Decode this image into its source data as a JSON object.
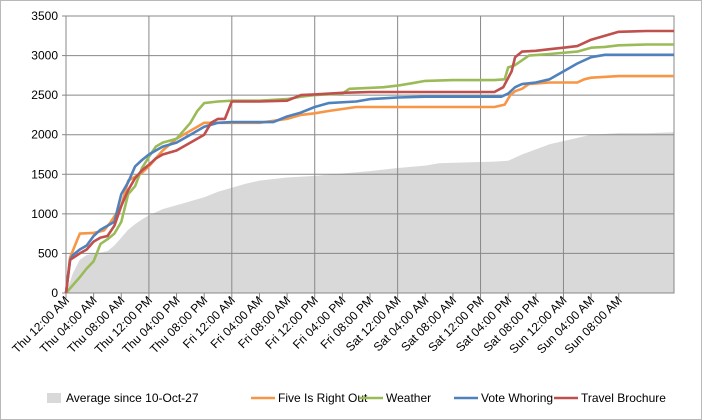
{
  "chart_data": {
    "type": "line",
    "title": "",
    "xlabel": "",
    "ylabel": "",
    "ylim": [
      0,
      3500
    ],
    "y_ticks": [
      0,
      500,
      1000,
      1500,
      2000,
      2500,
      3000,
      3500
    ],
    "x_range_hours": [
      0,
      88
    ],
    "x_ticks": [
      "Thu 12:00 AM",
      "Thu 04:00 AM",
      "Thu 08:00 AM",
      "Thu 12:00 PM",
      "Thu 04:00 PM",
      "Thu 08:00 PM",
      "Fri 12:00 AM",
      "Fri 04:00 AM",
      "Fri 08:00 AM",
      "Fri 12:00 PM",
      "Fri 04:00 PM",
      "Fri 08:00 PM",
      "Sat 12:00 AM",
      "Sat 04:00 AM",
      "Sat 08:00 AM",
      "Sat 12:00 PM",
      "Sat 04:00 PM",
      "Sat 08:00 PM",
      "Sun 12:00 AM",
      "Sun 04:00 AM",
      "Sun 08:00 AM"
    ],
    "grid": "major vertical and horizontal",
    "legend_position": "bottom",
    "series": [
      {
        "name": "Average since 10-Oct-27",
        "style": "area",
        "color": "#d9d9d9",
        "points": [
          [
            0,
            0
          ],
          [
            1,
            250
          ],
          [
            2,
            420
          ],
          [
            3,
            480
          ],
          [
            4,
            500
          ],
          [
            5,
            510
          ],
          [
            6,
            530
          ],
          [
            7,
            600
          ],
          [
            8,
            700
          ],
          [
            9,
            800
          ],
          [
            10,
            870
          ],
          [
            11,
            930
          ],
          [
            12,
            980
          ],
          [
            13,
            1020
          ],
          [
            14,
            1060
          ],
          [
            16,
            1110
          ],
          [
            18,
            1160
          ],
          [
            20,
            1210
          ],
          [
            22,
            1280
          ],
          [
            24,
            1330
          ],
          [
            26,
            1380
          ],
          [
            28,
            1420
          ],
          [
            30,
            1440
          ],
          [
            32,
            1460
          ],
          [
            36,
            1480
          ],
          [
            40,
            1510
          ],
          [
            44,
            1540
          ],
          [
            48,
            1580
          ],
          [
            52,
            1610
          ],
          [
            54,
            1640
          ],
          [
            58,
            1650
          ],
          [
            62,
            1660
          ],
          [
            64,
            1670
          ],
          [
            66,
            1750
          ],
          [
            70,
            1880
          ],
          [
            74,
            1960
          ],
          [
            76,
            2000
          ],
          [
            80,
            2020
          ],
          [
            84,
            2020
          ],
          [
            88,
            2030
          ]
        ]
      },
      {
        "name": "Five Is Right Out",
        "style": "line",
        "color": "#f79646",
        "points": [
          [
            0,
            0
          ],
          [
            0.6,
            450
          ],
          [
            2,
            750
          ],
          [
            4,
            760
          ],
          [
            5.5,
            790
          ],
          [
            6.5,
            900
          ],
          [
            8,
            1100
          ],
          [
            9,
            1420
          ],
          [
            10,
            1470
          ],
          [
            11,
            1520
          ],
          [
            12,
            1600
          ],
          [
            14,
            1800
          ],
          [
            16,
            1950
          ],
          [
            18,
            2050
          ],
          [
            20,
            2150
          ],
          [
            24,
            2150
          ],
          [
            28,
            2150
          ],
          [
            32,
            2200
          ],
          [
            34,
            2250
          ],
          [
            36,
            2270
          ],
          [
            38,
            2300
          ],
          [
            42,
            2350
          ],
          [
            48,
            2350
          ],
          [
            54,
            2350
          ],
          [
            58,
            2350
          ],
          [
            62,
            2350
          ],
          [
            63.5,
            2380
          ],
          [
            64.3,
            2500
          ],
          [
            65,
            2550
          ],
          [
            66,
            2580
          ],
          [
            67,
            2640
          ],
          [
            70,
            2660
          ],
          [
            74,
            2660
          ],
          [
            75,
            2700
          ],
          [
            76,
            2720
          ],
          [
            80,
            2740
          ],
          [
            84,
            2740
          ],
          [
            88,
            2740
          ]
        ]
      },
      {
        "name": "Weather",
        "style": "line",
        "color": "#9bbb59",
        "points": [
          [
            0,
            0
          ],
          [
            1,
            100
          ],
          [
            2,
            200
          ],
          [
            3,
            310
          ],
          [
            4,
            400
          ],
          [
            5,
            620
          ],
          [
            6,
            680
          ],
          [
            7,
            750
          ],
          [
            8,
            900
          ],
          [
            9,
            1250
          ],
          [
            10,
            1350
          ],
          [
            11,
            1580
          ],
          [
            12,
            1720
          ],
          [
            13,
            1850
          ],
          [
            14,
            1900
          ],
          [
            16,
            1950
          ],
          [
            17,
            2050
          ],
          [
            18,
            2150
          ],
          [
            19,
            2300
          ],
          [
            20,
            2400
          ],
          [
            22,
            2420
          ],
          [
            24,
            2430
          ],
          [
            28,
            2430
          ],
          [
            32,
            2450
          ],
          [
            34,
            2480
          ],
          [
            36,
            2500
          ],
          [
            40,
            2520
          ],
          [
            41,
            2580
          ],
          [
            46,
            2600
          ],
          [
            48,
            2620
          ],
          [
            50,
            2650
          ],
          [
            52,
            2680
          ],
          [
            56,
            2690
          ],
          [
            60,
            2690
          ],
          [
            62,
            2690
          ],
          [
            63.5,
            2700
          ],
          [
            64,
            2850
          ],
          [
            65,
            2880
          ],
          [
            66,
            2940
          ],
          [
            67,
            3000
          ],
          [
            70,
            3020
          ],
          [
            74,
            3050
          ],
          [
            76,
            3100
          ],
          [
            78,
            3110
          ],
          [
            80,
            3130
          ],
          [
            84,
            3140
          ],
          [
            88,
            3140
          ]
        ]
      },
      {
        "name": "Vote Whoring",
        "style": "line",
        "color": "#4f81bd",
        "points": [
          [
            0,
            0
          ],
          [
            0.6,
            420
          ],
          [
            1,
            480
          ],
          [
            2,
            550
          ],
          [
            3,
            600
          ],
          [
            4,
            720
          ],
          [
            5,
            800
          ],
          [
            6,
            850
          ],
          [
            7,
            900
          ],
          [
            8,
            1250
          ],
          [
            9,
            1400
          ],
          [
            10,
            1600
          ],
          [
            11,
            1680
          ],
          [
            12,
            1750
          ],
          [
            13,
            1800
          ],
          [
            14,
            1850
          ],
          [
            16,
            1900
          ],
          [
            18,
            2000
          ],
          [
            20,
            2100
          ],
          [
            22,
            2150
          ],
          [
            24,
            2160
          ],
          [
            28,
            2160
          ],
          [
            30,
            2160
          ],
          [
            32,
            2230
          ],
          [
            34,
            2280
          ],
          [
            36,
            2350
          ],
          [
            38,
            2400
          ],
          [
            42,
            2420
          ],
          [
            44,
            2450
          ],
          [
            46,
            2460
          ],
          [
            48,
            2470
          ],
          [
            52,
            2480
          ],
          [
            56,
            2480
          ],
          [
            60,
            2480
          ],
          [
            63,
            2480
          ],
          [
            64,
            2520
          ],
          [
            65,
            2600
          ],
          [
            66,
            2640
          ],
          [
            68,
            2660
          ],
          [
            70,
            2700
          ],
          [
            72,
            2800
          ],
          [
            74,
            2900
          ],
          [
            76,
            2980
          ],
          [
            78,
            3010
          ],
          [
            84,
            3010
          ],
          [
            88,
            3010
          ]
        ]
      },
      {
        "name": "Travel Brochure",
        "style": "line",
        "color": "#c0504d",
        "points": [
          [
            0,
            0
          ],
          [
            0.6,
            420
          ],
          [
            2,
            500
          ],
          [
            3,
            550
          ],
          [
            4,
            650
          ],
          [
            5,
            700
          ],
          [
            6,
            720
          ],
          [
            7,
            850
          ],
          [
            8,
            1100
          ],
          [
            9,
            1300
          ],
          [
            10,
            1450
          ],
          [
            11,
            1550
          ],
          [
            12,
            1620
          ],
          [
            13,
            1700
          ],
          [
            14,
            1750
          ],
          [
            16,
            1800
          ],
          [
            18,
            1900
          ],
          [
            20,
            2000
          ],
          [
            21,
            2150
          ],
          [
            22,
            2200
          ],
          [
            23,
            2200
          ],
          [
            24,
            2420
          ],
          [
            28,
            2420
          ],
          [
            32,
            2430
          ],
          [
            34,
            2500
          ],
          [
            36,
            2510
          ],
          [
            40,
            2530
          ],
          [
            44,
            2540
          ],
          [
            48,
            2540
          ],
          [
            52,
            2540
          ],
          [
            56,
            2540
          ],
          [
            60,
            2540
          ],
          [
            62,
            2540
          ],
          [
            63.3,
            2600
          ],
          [
            64.5,
            2800
          ],
          [
            65,
            2980
          ],
          [
            66,
            3050
          ],
          [
            68,
            3060
          ],
          [
            70,
            3080
          ],
          [
            72,
            3100
          ],
          [
            74,
            3120
          ],
          [
            76,
            3200
          ],
          [
            78,
            3250
          ],
          [
            80,
            3300
          ],
          [
            84,
            3310
          ],
          [
            88,
            3310
          ]
        ]
      }
    ]
  }
}
